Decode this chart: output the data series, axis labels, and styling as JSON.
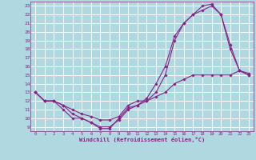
{
  "background_color": "#b0d8e0",
  "grid_color": "#ffffff",
  "line_color": "#882288",
  "xlabel": "Windchill (Refroidissement éolien,°C)",
  "xlim": [
    -0.5,
    23.5
  ],
  "ylim": [
    8.5,
    23.5
  ],
  "xticks": [
    0,
    1,
    2,
    3,
    4,
    5,
    6,
    7,
    8,
    9,
    10,
    11,
    12,
    13,
    14,
    15,
    16,
    17,
    18,
    19,
    20,
    21,
    22,
    23
  ],
  "yticks": [
    9,
    10,
    11,
    12,
    13,
    14,
    15,
    16,
    17,
    18,
    19,
    20,
    21,
    22,
    23
  ],
  "series": [
    {
      "x": [
        0,
        1,
        2,
        3,
        4,
        5,
        6,
        7,
        8,
        9,
        10,
        11,
        12,
        13,
        14,
        15,
        16,
        17,
        18,
        19,
        20,
        21,
        22,
        23
      ],
      "y": [
        13,
        12,
        12,
        11,
        10,
        10,
        9.5,
        8.8,
        8.8,
        10,
        11.2,
        11.5,
        12.3,
        14,
        16,
        19.5,
        21,
        22,
        22.5,
        23,
        22,
        18,
        15.5,
        15
      ]
    },
    {
      "x": [
        0,
        1,
        2,
        3,
        4,
        5,
        6,
        7,
        8,
        9,
        10,
        11,
        12,
        13,
        14,
        15,
        16,
        17,
        18,
        19,
        20,
        21,
        22,
        23
      ],
      "y": [
        13,
        12,
        12,
        11.5,
        10.5,
        10,
        9.5,
        9,
        9,
        9.8,
        11,
        11.5,
        12,
        13,
        15,
        19,
        21,
        22,
        23,
        23.2,
        22,
        18.5,
        15.5,
        15
      ]
    },
    {
      "x": [
        0,
        1,
        2,
        3,
        4,
        5,
        6,
        7,
        8,
        9,
        10,
        11,
        12,
        13,
        14,
        15,
        16,
        17,
        18,
        19,
        20,
        21,
        22,
        23
      ],
      "y": [
        13,
        12,
        12,
        11.5,
        11,
        10.5,
        10.2,
        9.8,
        9.8,
        10.2,
        11.5,
        12,
        12,
        12.5,
        13,
        14,
        14.5,
        15,
        15,
        15,
        15,
        15,
        15.5,
        15.2
      ]
    }
  ]
}
